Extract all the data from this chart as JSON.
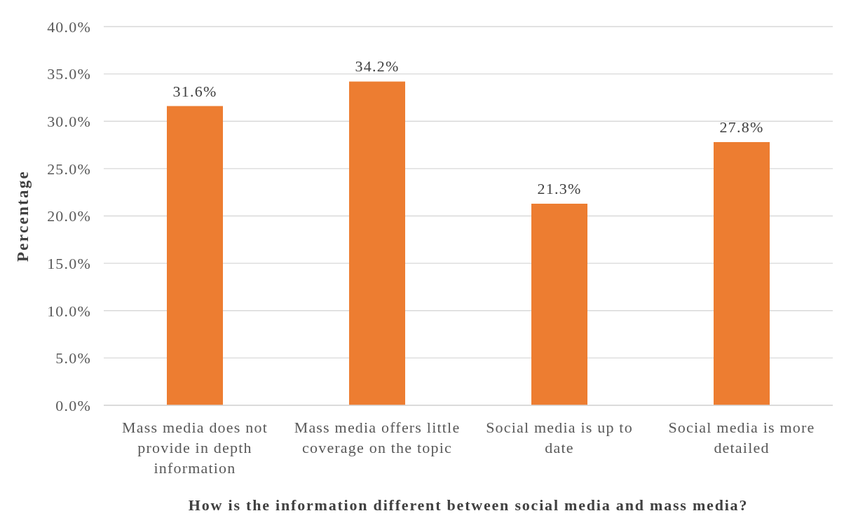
{
  "chart_data": {
    "type": "bar",
    "xlabel": "How is the information different between social media and mass media?",
    "ylabel": "Percentage",
    "categories": [
      "Mass media does not provide in depth information",
      "Mass media offers little coverage on the topic",
      "Social media is up to date",
      "Social media is more detailed"
    ],
    "values": [
      31.6,
      34.2,
      21.3,
      27.8
    ],
    "color": "#ed7d31",
    "value_labels": [
      "31.6%",
      "34.2%",
      "21.3%",
      "27.8%"
    ],
    "ylim": [
      0,
      40
    ],
    "yticks": [
      {
        "value": 0,
        "label": "0.0%"
      },
      {
        "value": 5,
        "label": "5.0%"
      },
      {
        "value": 10,
        "label": "10.0%"
      },
      {
        "value": 15,
        "label": "15.0%"
      },
      {
        "value": 20,
        "label": "20.0%"
      },
      {
        "value": 25,
        "label": "25.0%"
      },
      {
        "value": 30,
        "label": "30.0%"
      },
      {
        "value": 35,
        "label": "35.0%"
      },
      {
        "value": 40,
        "label": "40.0%"
      }
    ],
    "grid": "y"
  }
}
